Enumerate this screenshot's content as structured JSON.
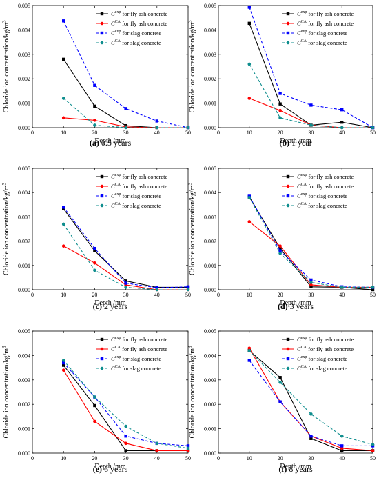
{
  "chart_data": [
    {
      "type": "line",
      "caption_letter": "(a)",
      "caption_text": " 0.5 years",
      "xlabel": "Depth /mm",
      "ylabel": "Chloride ion concentration/kg/m",
      "ylabel_sup": "3",
      "x": [
        10,
        20,
        30,
        40,
        50
      ],
      "xlim": [
        0,
        50
      ],
      "ylim": [
        0,
        0.005
      ],
      "xticks": [
        "0",
        "10",
        "20",
        "30",
        "40",
        "50"
      ],
      "yticks": [
        "0.000",
        "0.001",
        "0.002",
        "0.003",
        "0.004",
        "0.005"
      ],
      "legend_position": "top-right",
      "series": [
        {
          "name_main": "C",
          "name_sup": "exp",
          "name_rest": " for fly ash concrete",
          "color": "#000000",
          "dash": "solid",
          "marker": "square",
          "values": [
            0.0028,
            0.00088,
            8e-05,
            0.0,
            0.0
          ]
        },
        {
          "name_main": "C",
          "name_sup": "CA",
          "name_rest": " for fly ash concrete",
          "color": "#ff0000",
          "dash": "solid",
          "marker": "circle",
          "values": [
            0.0004,
            0.0003,
            3e-05,
            0.0,
            0.0
          ]
        },
        {
          "name_main": "C",
          "name_sup": "exp",
          "name_rest": " for slag concrete",
          "color": "#0000ff",
          "dash": "dashed",
          "marker": "square",
          "values": [
            0.00437,
            0.00173,
            0.00078,
            0.00027,
            0.0
          ]
        },
        {
          "name_main": "C",
          "name_sup": "CA",
          "name_rest": " for slag concrete",
          "color": "#0f8e8e",
          "dash": "dashed",
          "marker": "circle",
          "values": [
            0.0012,
            0.0001,
            0.0,
            0.0,
            0.0
          ]
        }
      ]
    },
    {
      "type": "line",
      "caption_letter": "(b)",
      "caption_text": " 1 year",
      "xlabel": "Depth /mm",
      "ylabel": "Chloride ion concentration/kg/m",
      "ylabel_sup": "3",
      "x": [
        10,
        20,
        30,
        40,
        50
      ],
      "xlim": [
        0,
        50
      ],
      "ylim": [
        0,
        0.005
      ],
      "xticks": [
        "0",
        "10",
        "20",
        "30",
        "40",
        "50"
      ],
      "yticks": [
        "0.000",
        "0.001",
        "0.002",
        "0.003",
        "0.004",
        "0.005"
      ],
      "legend_position": "top-right",
      "series": [
        {
          "name_main": "C",
          "name_sup": "exp",
          "name_rest": " for fly ash concrete",
          "color": "#000000",
          "dash": "solid",
          "marker": "square",
          "values": [
            0.00427,
            0.00097,
            0.0001,
            0.00022,
            0.0
          ]
        },
        {
          "name_main": "C",
          "name_sup": "CA",
          "name_rest": " for fly ash concrete",
          "color": "#ff0000",
          "dash": "solid",
          "marker": "circle",
          "values": [
            0.0012,
            0.0007,
            0.0001,
            0.0,
            0.0
          ]
        },
        {
          "name_main": "C",
          "name_sup": "exp",
          "name_rest": " for slag concrete",
          "color": "#0000ff",
          "dash": "dashed",
          "marker": "square",
          "values": [
            0.00493,
            0.0014,
            0.00092,
            0.00073,
            0.0
          ]
        },
        {
          "name_main": "C",
          "name_sup": "CA",
          "name_rest": " for slag concrete",
          "color": "#0f8e8e",
          "dash": "dashed",
          "marker": "circle",
          "values": [
            0.0026,
            0.0004,
            0.0001,
            0.0,
            0.0
          ]
        }
      ]
    },
    {
      "type": "line",
      "caption_letter": "(c)",
      "caption_text": " 2 years",
      "xlabel": "Depth /mm",
      "ylabel": "Chloride ion concentration/kg/m",
      "ylabel_sup": "3",
      "x": [
        10,
        20,
        30,
        40,
        50
      ],
      "xlim": [
        0,
        50
      ],
      "ylim": [
        0,
        0.005
      ],
      "xticks": [
        "0",
        "10",
        "20",
        "30",
        "40",
        "50"
      ],
      "yticks": [
        "0.000",
        "0.001",
        "0.002",
        "0.003",
        "0.004",
        "0.005"
      ],
      "legend_position": "top-right",
      "series": [
        {
          "name_main": "C",
          "name_sup": "exp",
          "name_rest": " for fly ash concrete",
          "color": "#000000",
          "dash": "solid",
          "marker": "square",
          "values": [
            0.00333,
            0.0016,
            0.00036,
            0.0001,
            0.0001
          ]
        },
        {
          "name_main": "C",
          "name_sup": "CA",
          "name_rest": " for fly ash concrete",
          "color": "#ff0000",
          "dash": "solid",
          "marker": "circle",
          "values": [
            0.0018,
            0.0011,
            0.0002,
            0.0,
            0.0
          ]
        },
        {
          "name_main": "C",
          "name_sup": "exp",
          "name_rest": " for slag concrete",
          "color": "#0000ff",
          "dash": "dashed",
          "marker": "square",
          "values": [
            0.0034,
            0.0017,
            0.00027,
            8e-05,
            0.00012
          ]
        },
        {
          "name_main": "C",
          "name_sup": "CA",
          "name_rest": " for slag concrete",
          "color": "#0f8e8e",
          "dash": "dashed",
          "marker": "circle",
          "values": [
            0.0027,
            0.0008,
            0.0001,
            0.0,
            0.0
          ]
        }
      ]
    },
    {
      "type": "line",
      "caption_letter": "(d)",
      "caption_text": " 3 years",
      "xlabel": "Depth /mm",
      "ylabel": "Chloride ion concentration/kg/m",
      "ylabel_sup": "3",
      "x": [
        10,
        20,
        30,
        40,
        50
      ],
      "xlim": [
        0,
        50
      ],
      "ylim": [
        0,
        0.005
      ],
      "xticks": [
        "0",
        "10",
        "20",
        "30",
        "40",
        "50"
      ],
      "yticks": [
        "0.000",
        "0.001",
        "0.002",
        "0.003",
        "0.004",
        "0.005"
      ],
      "legend_position": "top-right",
      "series": [
        {
          "name_main": "C",
          "name_sup": "exp",
          "name_rest": " for fly ash concrete",
          "color": "#000000",
          "dash": "solid",
          "marker": "square",
          "values": [
            0.00382,
            0.0017,
            0.00012,
            0.0001,
            0.0
          ]
        },
        {
          "name_main": "C",
          "name_sup": "CA",
          "name_rest": " for fly ash concrete",
          "color": "#ff0000",
          "dash": "solid",
          "marker": "circle",
          "values": [
            0.0028,
            0.0018,
            0.0002,
            0.0001,
            0.0001
          ]
        },
        {
          "name_main": "C",
          "name_sup": "exp",
          "name_rest": " for slag concrete",
          "color": "#0000ff",
          "dash": "dashed",
          "marker": "square",
          "values": [
            0.00385,
            0.0016,
            0.0004,
            0.00012,
            0.0001
          ]
        },
        {
          "name_main": "C",
          "name_sup": "CA",
          "name_rest": " for slag concrete",
          "color": "#0f8e8e",
          "dash": "dashed",
          "marker": "circle",
          "values": [
            0.0038,
            0.0015,
            0.0003,
            0.0001,
            0.0001
          ]
        }
      ]
    },
    {
      "type": "line",
      "caption_letter": "(e)",
      "caption_text": " 6 years",
      "xlabel": "Depth /mm",
      "ylabel": "Chloride ion concentration/kg/m",
      "ylabel_sup": "3",
      "x": [
        10,
        20,
        30,
        40,
        50
      ],
      "xlim": [
        0,
        50
      ],
      "ylim": [
        0,
        0.005
      ],
      "xticks": [
        "0",
        "10",
        "20",
        "30",
        "40",
        "50"
      ],
      "yticks": [
        "0.000",
        "0.001",
        "0.002",
        "0.003",
        "0.004",
        "0.005"
      ],
      "legend_position": "top-right",
      "series": [
        {
          "name_main": "C",
          "name_sup": "exp",
          "name_rest": " for fly ash concrete",
          "color": "#000000",
          "dash": "solid",
          "marker": "square",
          "values": [
            0.0036,
            0.00195,
            0.0001,
            0.0001,
            0.0001
          ]
        },
        {
          "name_main": "C",
          "name_sup": "CA",
          "name_rest": " for fly ash concrete",
          "color": "#ff0000",
          "dash": "solid",
          "marker": "circle",
          "values": [
            0.0034,
            0.0013,
            0.0004,
            0.0001,
            0.0001
          ]
        },
        {
          "name_main": "C",
          "name_sup": "exp",
          "name_rest": " for slag concrete",
          "color": "#0000ff",
          "dash": "dashed",
          "marker": "square",
          "values": [
            0.0037,
            0.0023,
            0.0007,
            0.0004,
            0.0003
          ]
        },
        {
          "name_main": "C",
          "name_sup": "CA",
          "name_rest": " for slag concrete",
          "color": "#0f8e8e",
          "dash": "dashed",
          "marker": "circle",
          "values": [
            0.0038,
            0.0023,
            0.0011,
            0.0004,
            0.0002
          ]
        }
      ]
    },
    {
      "type": "line",
      "caption_letter": "(f)",
      "caption_text": " 8 years",
      "xlabel": "Depth /mm",
      "ylabel": "Chloride ion concentration/kg/m",
      "ylabel_sup": "3",
      "x": [
        10,
        20,
        30,
        40,
        50
      ],
      "xlim": [
        0,
        50
      ],
      "ylim": [
        0,
        0.005
      ],
      "xticks": [
        "0",
        "10",
        "20",
        "30",
        "40",
        "50"
      ],
      "yticks": [
        "0.000",
        "0.001",
        "0.002",
        "0.003",
        "0.004",
        "0.005"
      ],
      "legend_position": "top-right",
      "series": [
        {
          "name_main": "C",
          "name_sup": "exp",
          "name_rest": " for fly ash concrete",
          "color": "#000000",
          "dash": "solid",
          "marker": "square",
          "values": [
            0.0042,
            0.0031,
            0.0006,
            0.0001,
            0.0001
          ]
        },
        {
          "name_main": "C",
          "name_sup": "CA",
          "name_rest": " for fly ash concrete",
          "color": "#ff0000",
          "dash": "solid",
          "marker": "circle",
          "values": [
            0.0043,
            0.0021,
            0.0007,
            0.0002,
            0.0001
          ]
        },
        {
          "name_main": "C",
          "name_sup": "exp",
          "name_rest": " for slag concrete",
          "color": "#0000ff",
          "dash": "dashed",
          "marker": "square",
          "values": [
            0.0038,
            0.0021,
            0.0007,
            0.0003,
            0.0003
          ]
        },
        {
          "name_main": "C",
          "name_sup": "CA",
          "name_rest": " for slag concrete",
          "color": "#0f8e8e",
          "dash": "dashed",
          "marker": "circle",
          "values": [
            0.0042,
            0.0029,
            0.0016,
            0.0007,
            0.00035
          ]
        }
      ]
    }
  ]
}
